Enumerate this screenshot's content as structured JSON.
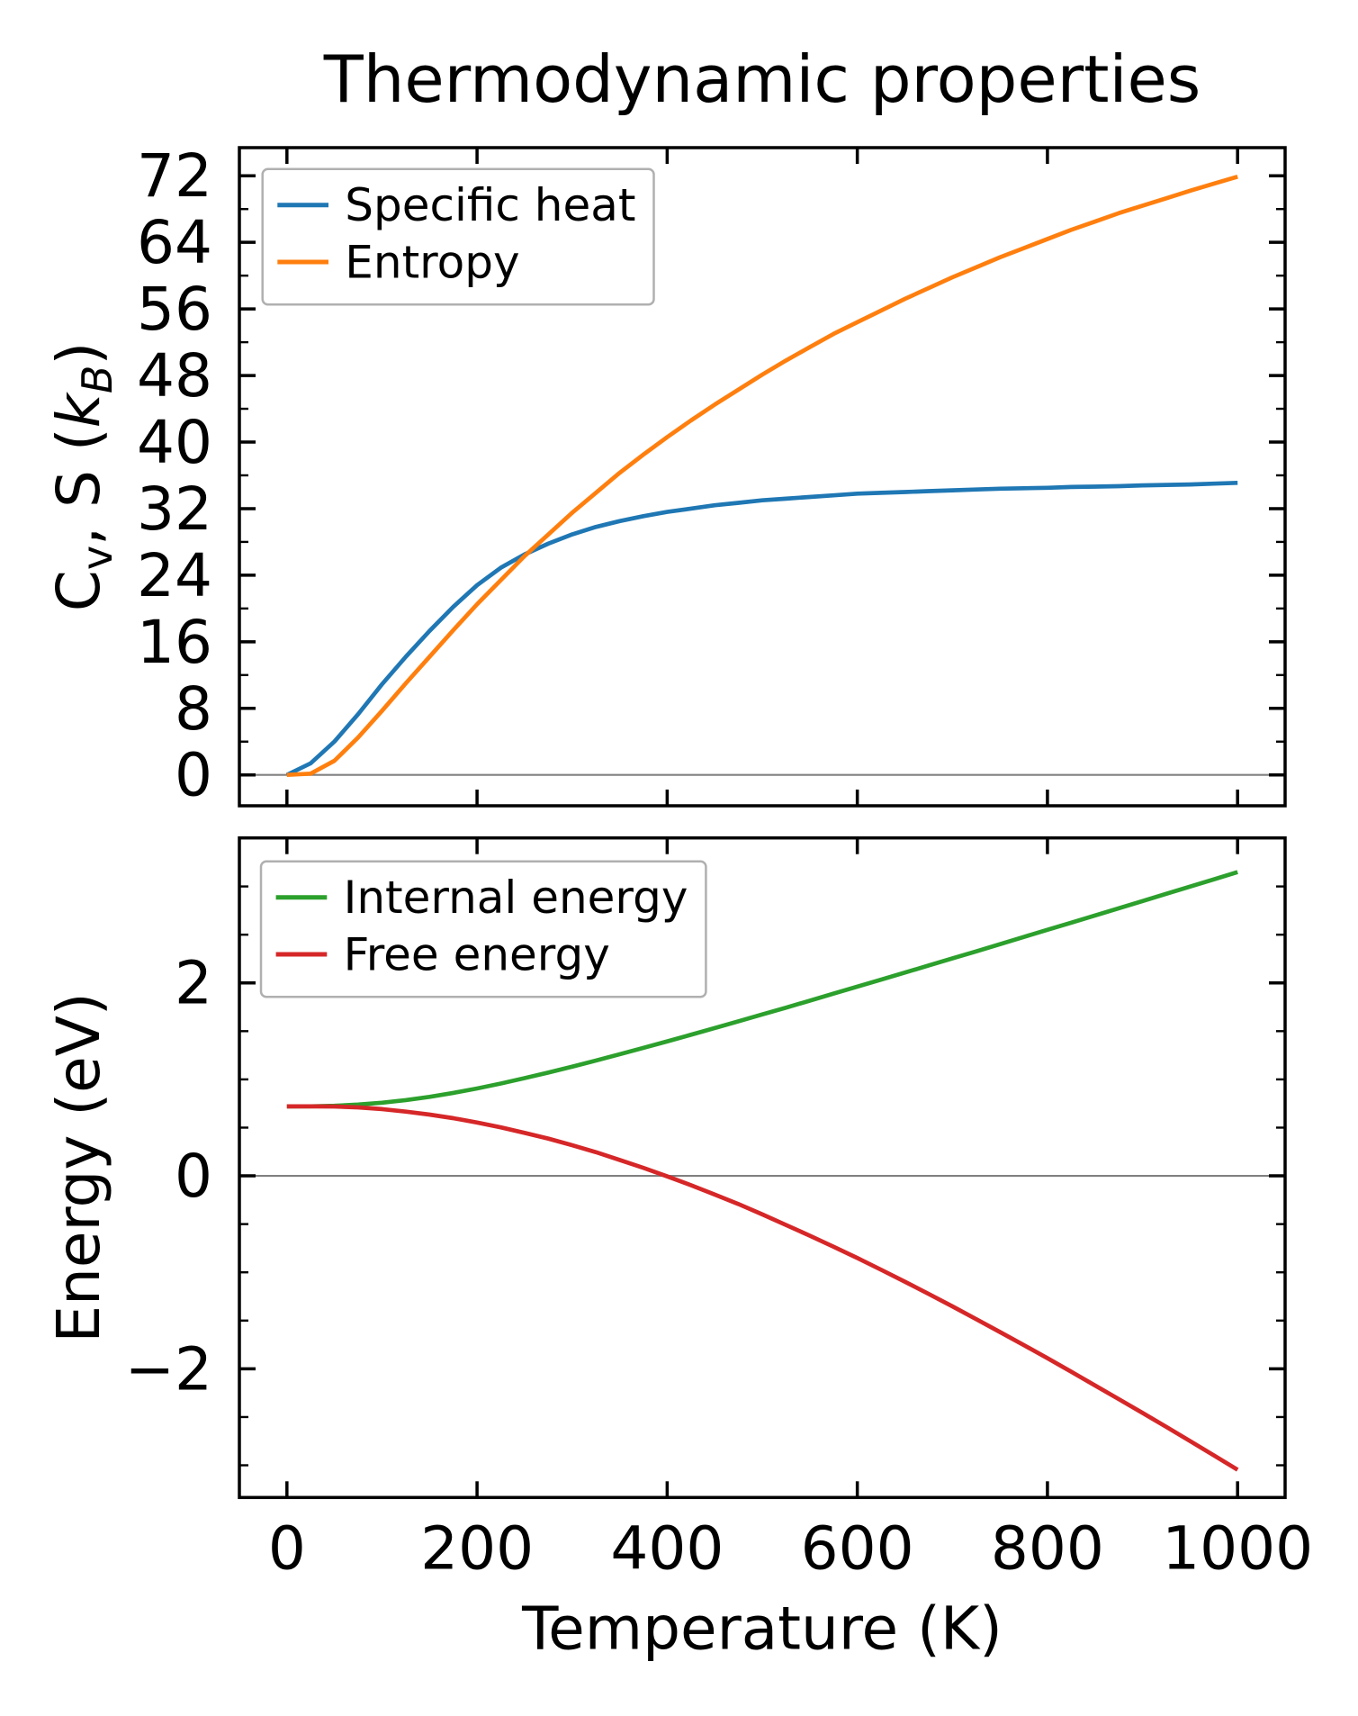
{
  "chart_data": {
    "type": "line",
    "title": "Thermodynamic properties",
    "xlabel": "Temperature (K)",
    "xlim": [
      -50,
      1050
    ],
    "xticks": {
      "values": [
        0,
        200,
        400,
        600,
        800,
        1000
      ],
      "labels": [
        "0",
        "200",
        "400",
        "600",
        "800",
        "1000"
      ]
    },
    "x_values": [
      0,
      25,
      50,
      75,
      100,
      125,
      150,
      175,
      200,
      225,
      250,
      275,
      300,
      325,
      350,
      375,
      400,
      425,
      450,
      475,
      500,
      525,
      550,
      575,
      600,
      625,
      650,
      675,
      700,
      725,
      750,
      775,
      800,
      825,
      850,
      875,
      900,
      925,
      950,
      975,
      1000
    ],
    "zero_line_color": "#808080",
    "grid": false,
    "legend_position": "upper left",
    "subplots": [
      {
        "ylabel": "Cv, S (kB)",
        "ylabel_parts": [
          {
            "t": "C"
          },
          {
            "t": "v",
            "sub": true
          },
          {
            "t": ", S ("
          },
          {
            "t": "k",
            "italic": true
          },
          {
            "t": "B",
            "sub": true,
            "italic": true
          },
          {
            "t": ")"
          }
        ],
        "ylim": [
          -3.71,
          75.38
        ],
        "yticks": {
          "values": [
            0,
            8,
            16,
            24,
            32,
            40,
            48,
            56,
            64,
            72
          ],
          "labels": [
            "0",
            "8",
            "16",
            "24",
            "32",
            "40",
            "48",
            "56",
            "64",
            "72"
          ],
          "minor": [
            4,
            12,
            20,
            28,
            36,
            44,
            52,
            60,
            68
          ]
        },
        "zero_line": 0,
        "series": [
          {
            "name": "Specific heat",
            "color": "#1f77b4",
            "values": [
              0,
              1.4,
              4.0,
              7.3,
              10.9,
              14.2,
              17.3,
              20.2,
              22.8,
              24.9,
              26.5,
              27.8,
              28.9,
              29.8,
              30.5,
              31.1,
              31.6,
              32.0,
              32.4,
              32.7,
              33.0,
              33.2,
              33.4,
              33.6,
              33.8,
              33.9,
              34.0,
              34.1,
              34.2,
              34.3,
              34.4,
              34.45,
              34.5,
              34.6,
              34.65,
              34.7,
              34.8,
              34.85,
              34.9,
              35.0,
              35.1
            ]
          },
          {
            "name": "Entropy",
            "color": "#ff7f0e",
            "values": [
              0,
              0.15,
              1.7,
              4.5,
              7.7,
              11.0,
              14.2,
              17.4,
              20.5,
              23.4,
              26.3,
              28.9,
              31.5,
              33.9,
              36.3,
              38.5,
              40.6,
              42.6,
              44.5,
              46.3,
              48.1,
              49.8,
              51.4,
              53.0,
              54.4,
              55.8,
              57.2,
              58.5,
              59.8,
              61.0,
              62.2,
              63.3,
              64.4,
              65.5,
              66.5,
              67.5,
              68.4,
              69.3,
              70.2,
              71.05,
              71.9
            ]
          }
        ]
      },
      {
        "ylabel": "Energy (eV)",
        "ylabel_parts": [
          {
            "t": "Energy (eV)"
          }
        ],
        "ylim": [
          -3.334,
          3.503
        ],
        "yticks": {
          "values": [
            -2,
            0,
            2
          ],
          "labels": [
            "−2",
            "0",
            "2"
          ],
          "minor": [
            -3,
            -2.5,
            -1.5,
            -1,
            -0.5,
            0.5,
            1,
            1.5,
            2.5,
            3
          ]
        },
        "zero_line": 0,
        "series": [
          {
            "name": "Internal energy",
            "color": "#2ca02c",
            "values": [
              0.72,
              0.721,
              0.727,
              0.739,
              0.758,
              0.785,
              0.819,
              0.86,
              0.906,
              0.957,
              1.013,
              1.071,
              1.132,
              1.195,
              1.26,
              1.327,
              1.394,
              1.463,
              1.532,
              1.602,
              1.673,
              1.744,
              1.816,
              1.889,
              1.961,
              2.034,
              2.107,
              2.181,
              2.254,
              2.327,
              2.401,
              2.476,
              2.55,
              2.624,
              2.699,
              2.773,
              2.848,
              2.923,
              2.998,
              3.074,
              3.149
            ]
          },
          {
            "name": "Free energy",
            "color": "#d62728",
            "values": [
              0.72,
              0.72,
              0.719,
              0.71,
              0.692,
              0.666,
              0.635,
              0.598,
              0.553,
              0.503,
              0.446,
              0.386,
              0.318,
              0.246,
              0.165,
              0.083,
              -0.005,
              -0.097,
              -0.194,
              -0.293,
              -0.399,
              -0.509,
              -0.62,
              -0.735,
              -0.852,
              -0.973,
              -1.097,
              -1.224,
              -1.353,
              -1.485,
              -1.619,
              -1.753,
              -1.89,
              -2.03,
              -2.172,
              -2.314,
              -2.457,
              -2.602,
              -2.749,
              -2.897,
              -3.047
            ]
          }
        ]
      }
    ]
  }
}
